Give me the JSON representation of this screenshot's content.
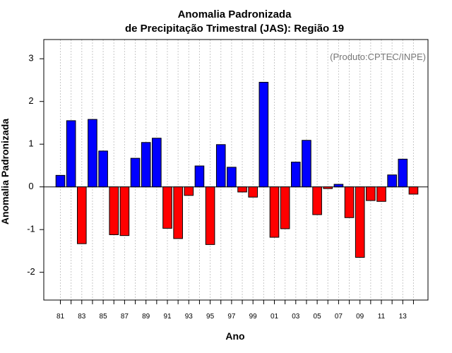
{
  "chart_data": {
    "type": "bar",
    "title_line1": "Anomalia Padronizada",
    "title_line2": "de Precipitação Trimestral (JAS): Região 19",
    "xlabel": "Ano",
    "ylabel": "Anomalia Padronizada",
    "annotation": "(Produto:CPTEC/INPE)",
    "ylim": [
      -2.65,
      3.45
    ],
    "yticks": [
      -2,
      -1,
      0,
      1,
      2,
      3
    ],
    "ytick_labels": [
      "-2",
      "-1",
      "0",
      "1",
      "2",
      "3"
    ],
    "years": [
      1981,
      1982,
      1983,
      1984,
      1985,
      1986,
      1987,
      1988,
      1989,
      1990,
      1991,
      1992,
      1993,
      1994,
      1995,
      1996,
      1997,
      1998,
      1999,
      2000,
      2001,
      2002,
      2003,
      2004,
      2005,
      2006,
      2007,
      2008,
      2009,
      2010,
      2011,
      2012,
      2013,
      2014
    ],
    "values": [
      0.27,
      1.55,
      -1.33,
      1.58,
      0.84,
      -1.12,
      -1.14,
      0.67,
      1.04,
      1.14,
      -0.97,
      -1.21,
      -0.2,
      0.49,
      -1.35,
      0.99,
      0.46,
      -0.12,
      -0.24,
      2.45,
      -1.18,
      -0.98,
      0.58,
      1.09,
      -0.65,
      -0.04,
      0.06,
      -0.72,
      -1.65,
      -0.32,
      -0.34,
      0.28,
      0.65,
      -0.17
    ],
    "xtick_labels": [
      "81",
      "83",
      "85",
      "87",
      "89",
      "91",
      "93",
      "95",
      "97",
      "99",
      "01",
      "03",
      "05",
      "07",
      "09",
      "11",
      "13"
    ],
    "xtick_years": [
      1981,
      1983,
      1985,
      1987,
      1989,
      1991,
      1993,
      1995,
      1997,
      1999,
      2001,
      2003,
      2005,
      2007,
      2009,
      2011,
      2013
    ],
    "colors": {
      "positive": "#0000ff",
      "negative": "#ff0000",
      "grid": "#c8c8c8",
      "annotation": "#777777"
    }
  }
}
